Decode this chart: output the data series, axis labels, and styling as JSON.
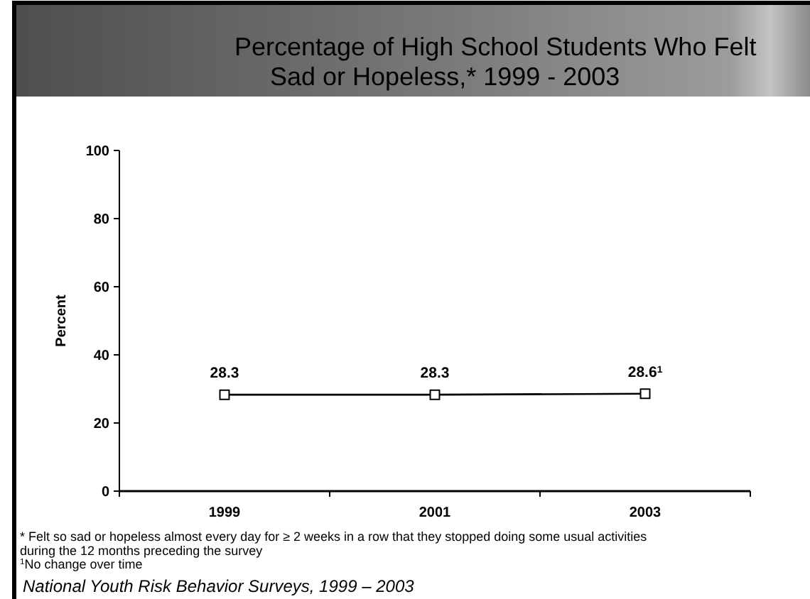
{
  "chart_data": {
    "type": "line",
    "title": "Percentage of High School Students Who Felt Sad or Hopeless,* 1999 - 2003",
    "ylabel": "Percent",
    "categories": [
      "1999",
      "2001",
      "2003"
    ],
    "series": [
      {
        "color": "#000000",
        "values": [
          28.3,
          28.3,
          28.6
        ],
        "value_labels": [
          "28.3",
          "28.3",
          "28.6$^{1}$"
        ]
      }
    ],
    "ylim": [
      0,
      100
    ],
    "yticks": [
      0,
      20,
      40,
      60,
      80,
      100
    ],
    "marker": "square",
    "line_style": "solid",
    "annotations": [
      "* Felt so sad or hopeless almost every day for ≥ 2 weeks in a row that they stopped doing some usual activities during the 12 months preceding the survey",
      "$^{1}$No change over time",
      "National Youth Risk Behavior Surveys, 1999 – 2003"
    ]
  }
}
